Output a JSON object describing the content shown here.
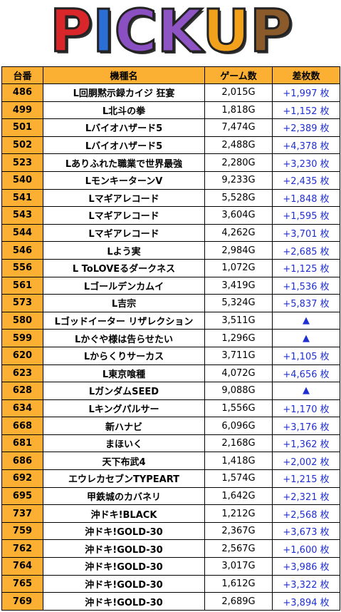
{
  "banner": {
    "letters": [
      "P",
      "I",
      "C",
      "K",
      "U",
      "P"
    ],
    "colors": [
      "#d8262a",
      "#2b6fd6",
      "#8a4fc0",
      "#8e54c4",
      "#f2a11d",
      "#8b5a2b"
    ]
  },
  "table": {
    "header": [
      "台番",
      "機種名",
      "ゲーム数",
      "差枚数"
    ],
    "rows": [
      [
        "486",
        "L回胴黙示録カイジ 狂宴",
        "2,015G",
        "+1,997 枚"
      ],
      [
        "499",
        "L北斗の拳",
        "1,818G",
        "+1,152 枚"
      ],
      [
        "501",
        "Lバイオハザード5",
        "7,474G",
        "+2,389 枚"
      ],
      [
        "502",
        "Lバイオハザード5",
        "2,488G",
        "+4,378 枚"
      ],
      [
        "523",
        "Lありふれた職業で世界最強",
        "2,280G",
        "+3,230 枚"
      ],
      [
        "540",
        "LモンキーターンV",
        "9,233G",
        "+2,435 枚"
      ],
      [
        "541",
        "Lマギアレコード",
        "5,528G",
        "+1,848 枚"
      ],
      [
        "543",
        "Lマギアレコード",
        "3,604G",
        "+1,595 枚"
      ],
      [
        "544",
        "Lマギアレコード",
        "4,262G",
        "+3,701 枚"
      ],
      [
        "546",
        "Lよう実",
        "2,984G",
        "+2,685 枚"
      ],
      [
        "556",
        "L ToLOVEるダークネス",
        "1,072G",
        "+1,125 枚"
      ],
      [
        "561",
        "Lゴールデンカムイ",
        "3,419G",
        "+1,536 枚"
      ],
      [
        "573",
        "L吉宗",
        "5,324G",
        "+5,837 枚"
      ],
      [
        "580",
        "Lゴッドイーター リザレクション",
        "3,511G",
        "▲"
      ],
      [
        "599",
        "Lかぐや様は告らせたい",
        "1,296G",
        "▲"
      ],
      [
        "620",
        "Lからくりサーカス",
        "3,711G",
        "+1,105 枚"
      ],
      [
        "623",
        "L東京喰種",
        "4,072G",
        "+4,656 枚"
      ],
      [
        "628",
        "LガンダムSEED",
        "9,088G",
        "▲"
      ],
      [
        "634",
        "Lキングパルサー",
        "1,556G",
        "+1,170 枚"
      ],
      [
        "668",
        "新ハナビ",
        "6,096G",
        "+3,176 枚"
      ],
      [
        "681",
        "まほいく",
        "2,168G",
        "+1,362 枚"
      ],
      [
        "686",
        "天下布武4",
        "1,418G",
        "+2,002 枚"
      ],
      [
        "692",
        "エウレカセブンTYPEART",
        "1,574G",
        "+1,215 枚"
      ],
      [
        "695",
        "甲鉄城のカバネリ",
        "1,642G",
        "+2,321 枚"
      ],
      [
        "737",
        "沖ドキ!BLACK",
        "1,212G",
        "+2,568 枚"
      ],
      [
        "759",
        "沖ドキ!GOLD-30",
        "2,367G",
        "+3,673 枚"
      ],
      [
        "762",
        "沖ドキ!GOLD-30",
        "2,567G",
        "+1,600 枚"
      ],
      [
        "764",
        "沖ドキ!GOLD-30",
        "3,017G",
        "+3,986 枚"
      ],
      [
        "765",
        "沖ドキ!GOLD-30",
        "1,612G",
        "+3,322 枚"
      ],
      [
        "769",
        "沖ドキ!GOLD-30",
        "2,689G",
        "+3,894 枚"
      ]
    ]
  }
}
